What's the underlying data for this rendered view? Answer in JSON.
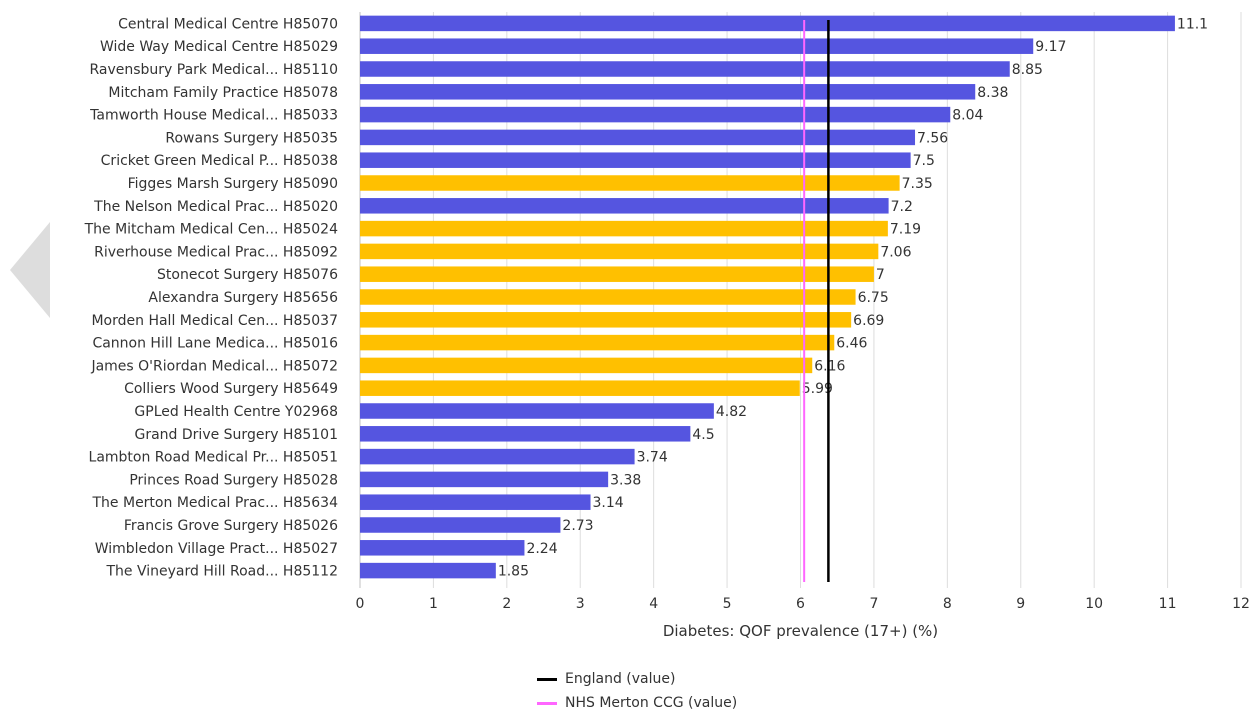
{
  "colors": {
    "better": "#5555e0",
    "similar": "#ffc000",
    "england_line": "#000000",
    "ccg_line": "#ff66ff",
    "grid": "#dddddd",
    "text": "#333333",
    "nav_arrow": "#dddddd"
  },
  "legend": {
    "england": "England (value)",
    "ccg": "NHS Merton CCG (value)"
  },
  "chart_data": {
    "type": "bar",
    "orientation": "horizontal",
    "xlabel": "Diabetes: QOF prevalence (17+) (%)",
    "xlim": [
      0,
      12
    ],
    "xticks": [
      "0",
      "1",
      "2",
      "3",
      "4",
      "5",
      "6",
      "7",
      "8",
      "9",
      "10",
      "11",
      "12"
    ],
    "grid": true,
    "legend_position": "bottom",
    "reference_lines": [
      {
        "name": "England (value)",
        "value": 6.38,
        "color": "#000000"
      },
      {
        "name": "NHS Merton CCG (value)",
        "value": 6.05,
        "color": "#ff66ff"
      }
    ],
    "categories": [
      "Central Medical Centre H85070",
      "Wide Way Medical Centre H85029",
      "Ravensbury Park Medical... H85110",
      "Mitcham Family Practice H85078",
      "Tamworth House Medical... H85033",
      "Rowans Surgery H85035",
      "Cricket Green Medical P... H85038",
      "Figges Marsh Surgery H85090",
      "The Nelson Medical Prac... H85020",
      "The Mitcham Medical Cen... H85024",
      "Riverhouse Medical Prac... H85092",
      "Stonecot Surgery H85076",
      "Alexandra Surgery H85656",
      "Morden Hall Medical Cen... H85037",
      "Cannon Hill Lane Medica... H85016",
      "James O'Riordan Medical... H85072",
      "Colliers Wood Surgery H85649",
      "GPLed Health Centre Y02968",
      "Grand Drive Surgery H85101",
      "Lambton Road Medical Pr... H85051",
      "Princes Road Surgery H85028",
      "The Merton Medical Prac... H85634",
      "Francis Grove Surgery H85026",
      "Wimbledon Village Pract... H85027",
      "The Vineyard Hill Road... H85112"
    ],
    "values": [
      11.1,
      9.17,
      8.85,
      8.38,
      8.04,
      7.56,
      7.5,
      7.35,
      7.2,
      7.19,
      7.06,
      7,
      6.75,
      6.69,
      6.46,
      6.16,
      5.99,
      4.82,
      4.5,
      3.74,
      3.38,
      3.14,
      2.73,
      2.24,
      1.85
    ],
    "value_labels": [
      "11.1",
      "9.17",
      "8.85",
      "8.38",
      "8.04",
      "7.56",
      "7.5",
      "7.35",
      "7.2",
      "7.19",
      "7.06",
      "7",
      "6.75",
      "6.69",
      "6.46",
      "6.16",
      "5.99",
      "4.82",
      "4.5",
      "3.74",
      "3.38",
      "3.14",
      "2.73",
      "2.24",
      "1.85"
    ],
    "bar_colors": [
      "#5555e0",
      "#5555e0",
      "#5555e0",
      "#5555e0",
      "#5555e0",
      "#5555e0",
      "#5555e0",
      "#ffc000",
      "#5555e0",
      "#ffc000",
      "#ffc000",
      "#ffc000",
      "#ffc000",
      "#ffc000",
      "#ffc000",
      "#ffc000",
      "#ffc000",
      "#5555e0",
      "#5555e0",
      "#5555e0",
      "#5555e0",
      "#5555e0",
      "#5555e0",
      "#5555e0",
      "#5555e0"
    ]
  }
}
